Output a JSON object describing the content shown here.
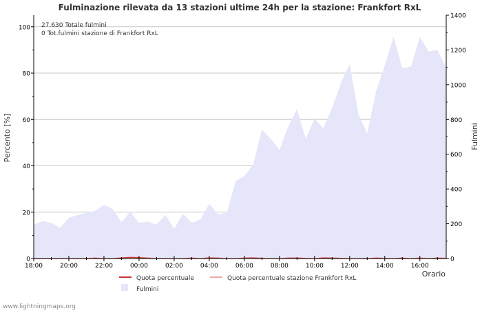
{
  "chart_data": {
    "type": "area",
    "title": "Fulminazione rilevata da 13 stazioni ultime 24h per la stazione: Frankfort RxL",
    "ylabel_left": "Percento   [%]",
    "ylabel_right": "Fulmini",
    "xlabel": "Orario",
    "y_left_lim": [
      0,
      105
    ],
    "y_left_ticks": [
      0,
      20,
      40,
      60,
      80,
      100
    ],
    "y_right_lim": [
      0,
      1400
    ],
    "y_right_ticks": [
      0,
      200,
      400,
      600,
      800,
      1000,
      1200,
      1400
    ],
    "x_hours": [
      0,
      23.5
    ],
    "x_ticks": [
      {
        "h": 0,
        "label": "18:00"
      },
      {
        "h": 2,
        "label": "20:00"
      },
      {
        "h": 4,
        "label": "22:00"
      },
      {
        "h": 6,
        "label": "00:00"
      },
      {
        "h": 8,
        "label": "02:00"
      },
      {
        "h": 10,
        "label": "04:00"
      },
      {
        "h": 12,
        "label": "06:00"
      },
      {
        "h": 14,
        "label": "08:00"
      },
      {
        "h": 16,
        "label": "10:00"
      },
      {
        "h": 18,
        "label": "12:00"
      },
      {
        "h": 20,
        "label": "14:00"
      },
      {
        "h": 22,
        "label": "16:00"
      }
    ],
    "annotations": [
      "27.630 Totale fulmini",
      "0 Tot.fulmini stazione di Frankfort RxL"
    ],
    "series": [
      {
        "name": "Fulmini",
        "axis": "right",
        "color": "#e6e6fa",
        "x": [
          0,
          0.5,
          1,
          1.5,
          2,
          2.5,
          3,
          3.5,
          4,
          4.5,
          5,
          5.5,
          6,
          6.5,
          7,
          7.5,
          8,
          8.5,
          9,
          9.5,
          10,
          10.5,
          11,
          11.5,
          12,
          12.5,
          13,
          13.5,
          14,
          14.5,
          15,
          15.5,
          16,
          16.5,
          17,
          17.5,
          18,
          18.5,
          19,
          19.5,
          20,
          20.5,
          21,
          21.5,
          22,
          22.5,
          23,
          23.5
        ],
        "values": [
          195,
          215,
          205,
          175,
          235,
          250,
          262,
          275,
          308,
          285,
          210,
          268,
          205,
          212,
          195,
          252,
          170,
          258,
          205,
          225,
          315,
          255,
          262,
          445,
          475,
          540,
          740,
          690,
          625,
          760,
          860,
          690,
          805,
          750,
          865,
          1010,
          1120,
          830,
          720,
          960,
          1110,
          1275,
          1095,
          1105,
          1275,
          1190,
          1200,
          1095
        ]
      },
      {
        "name": "Quota percentuale",
        "axis": "left",
        "color": "#cc3333",
        "x": [
          0,
          0.5,
          1,
          1.5,
          2,
          2.5,
          3,
          3.5,
          4,
          4.5,
          5,
          5.5,
          6,
          6.5,
          7,
          7.5,
          8,
          8.5,
          9,
          9.5,
          10,
          10.5,
          11,
          11.5,
          12,
          12.5,
          13,
          13.5,
          14,
          14.5,
          15,
          15.5,
          16,
          16.5,
          17,
          17.5,
          18,
          18.5,
          19,
          19.5,
          20,
          20.5,
          21,
          21.5,
          22,
          22.5,
          23,
          23.5
        ],
        "values": [
          0,
          0,
          0,
          0,
          0,
          0,
          0,
          0.2,
          0,
          0,
          0.3,
          0.5,
          0.4,
          0.2,
          0,
          0,
          0,
          0,
          0.2,
          0,
          0.3,
          0.2,
          0,
          0,
          0.2,
          0.3,
          0.1,
          0,
          0,
          0.2,
          0.2,
          0.1,
          0,
          0.3,
          0.2,
          0.1,
          0,
          0,
          0,
          0.2,
          0.1,
          0,
          0.2,
          0,
          0.2,
          0,
          0.2,
          0.1
        ]
      },
      {
        "name": "Quota percentuale stazione Frankfort RxL",
        "axis": "left",
        "color": "#f4a6a6",
        "x": [
          0,
          23.5
        ],
        "values": [
          0,
          0
        ]
      }
    ],
    "legend": [
      "Quota percentuale",
      "Quota percentuale stazione Frankfort RxL",
      "Fulmini"
    ],
    "colors": {
      "grid": "#c8c8c8",
      "axis": "#000000",
      "text": "#333333"
    }
  },
  "footer": {
    "watermark": "www.lightningmaps.org"
  }
}
